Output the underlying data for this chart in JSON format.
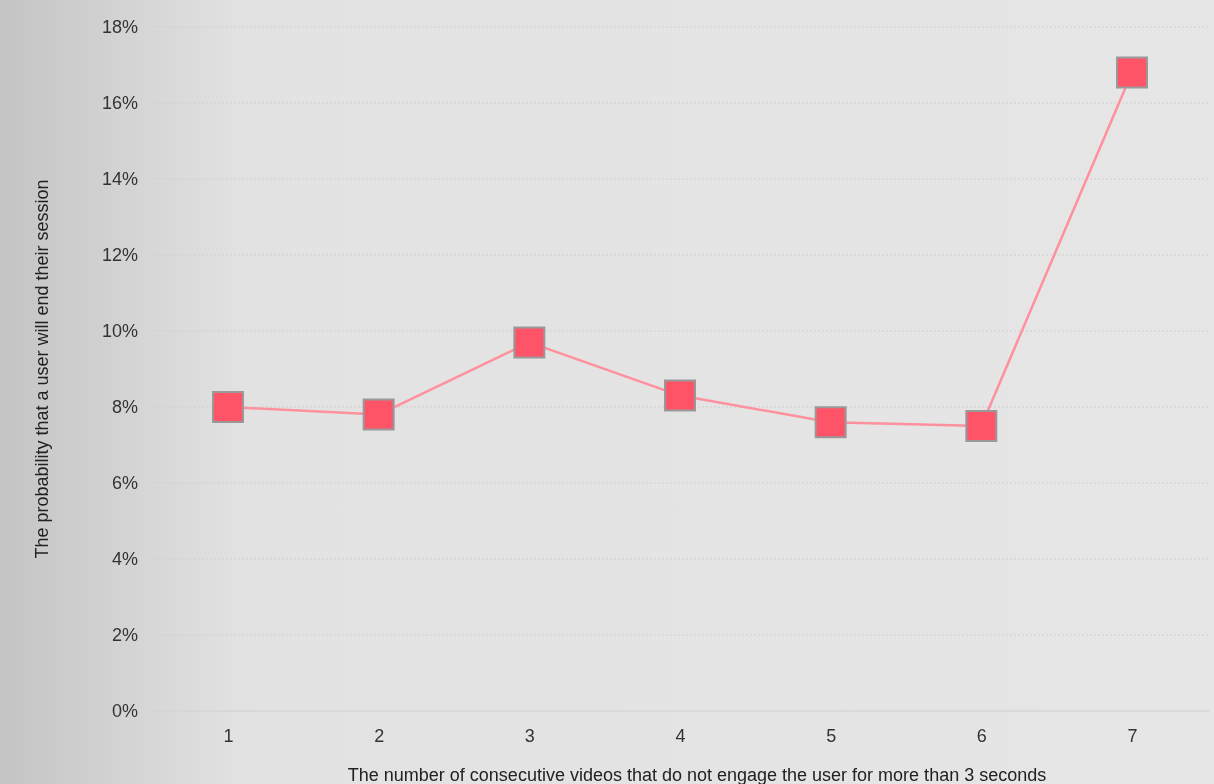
{
  "chart_data": {
    "type": "line",
    "xlabel": "The number of consecutive videos that do not engage the user for more than 3 seconds",
    "ylabel": "The probability that a user will end their session",
    "categories": [
      "1",
      "2",
      "3",
      "4",
      "5",
      "6",
      "7"
    ],
    "series": [
      {
        "color": "#ff5468",
        "values": [
          8.0,
          7.8,
          9.7,
          8.3,
          7.6,
          7.5,
          16.8
        ]
      }
    ],
    "ylim": [
      0,
      18
    ],
    "yticks": [
      {
        "value": 0,
        "label": "0%"
      },
      {
        "value": 2,
        "label": "2%"
      },
      {
        "value": 4,
        "label": "4%"
      },
      {
        "value": 6,
        "label": "6%"
      },
      {
        "value": 8,
        "label": "8%"
      },
      {
        "value": 10,
        "label": "10%"
      },
      {
        "value": 12,
        "label": "12%"
      },
      {
        "value": 14,
        "label": "14%"
      },
      {
        "value": 16,
        "label": "16%"
      },
      {
        "value": 18,
        "label": "18%"
      }
    ],
    "grid": "y",
    "marker": "square",
    "line_style": "solid"
  }
}
